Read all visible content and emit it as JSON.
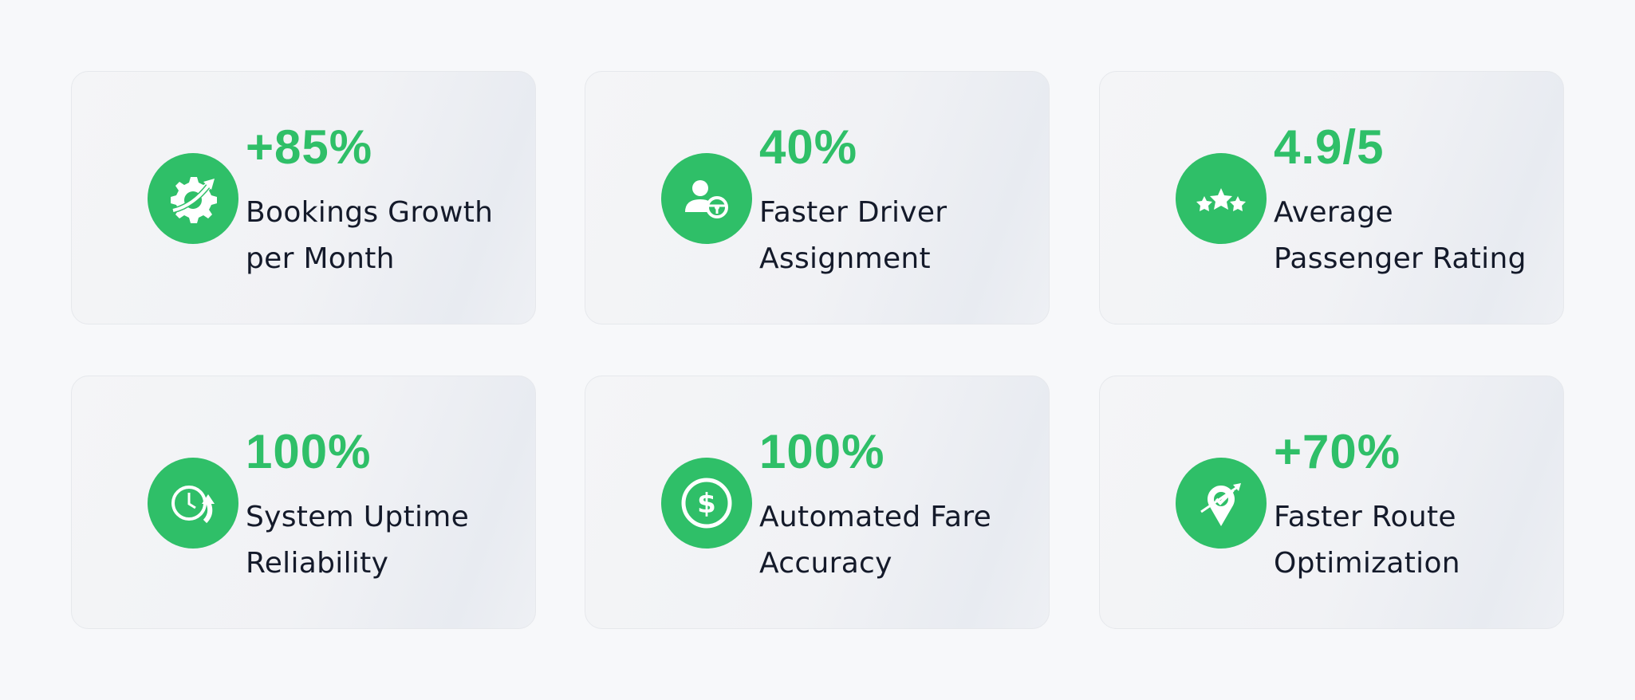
{
  "accent_color": "#2fbf68",
  "stats": [
    {
      "value": "+85%",
      "label_lines": [
        "Bookings Growth",
        "per Month"
      ],
      "icon": "gear-growth-arrow-icon"
    },
    {
      "value": "40%",
      "label_lines": [
        "Faster Driver",
        "Assignment"
      ],
      "icon": "driver-steering-wheel-icon"
    },
    {
      "value": "4.9/5",
      "label_lines": [
        "Average",
        "Passenger Rating"
      ],
      "icon": "three-stars-icon"
    },
    {
      "value": "100%",
      "label_lines": [
        "System Uptime",
        "Reliability"
      ],
      "icon": "clock-refresh-icon"
    },
    {
      "value": "100%",
      "label_lines": [
        "Automated Fare",
        "Accuracy"
      ],
      "icon": "dollar-coin-icon"
    },
    {
      "value": "+70%",
      "label_lines": [
        "Faster Route",
        "Optimization"
      ],
      "icon": "map-pin-check-icon"
    }
  ]
}
